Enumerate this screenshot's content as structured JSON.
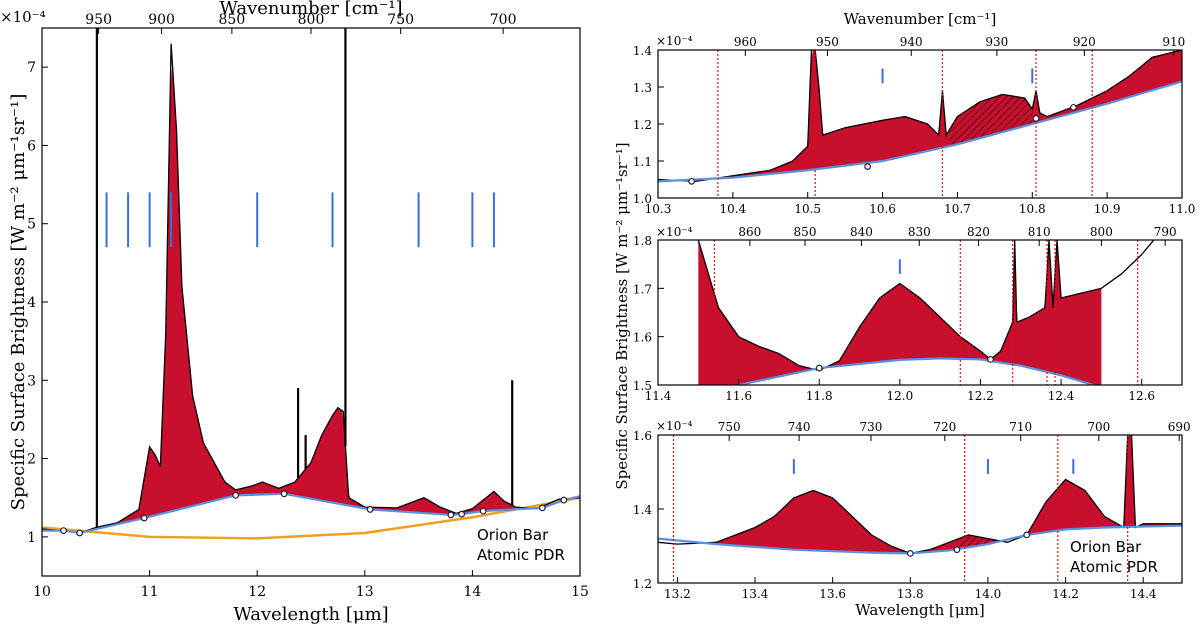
{
  "figure": {
    "shared_ylabel": "Specific Surface Brightness [W m⁻² μm⁻¹sr⁻¹]",
    "colors": {
      "feature_fill": "#c8102e",
      "continuum": "#5b8fe0",
      "global_continuum": "#f0a020",
      "spectrum": "#000000",
      "marker": "#3a6fd8",
      "vline": "#dd1111"
    }
  },
  "chart_data": [
    {
      "type": "line",
      "title": "",
      "xlabel": "Wavelength [μm]",
      "x2label": "Wavenumber [cm⁻¹]",
      "ylabel": "Specific Surface Brightness [W m⁻² μm⁻¹sr⁻¹]",
      "y_multiplier": "×10⁻⁴",
      "xlim": [
        10,
        15
      ],
      "ylim": [
        0.5,
        7.5
      ],
      "xticks": [
        10,
        11,
        12,
        13,
        14,
        15
      ],
      "yticks": [
        1,
        2,
        3,
        4,
        5,
        6,
        7
      ],
      "x2ticks": [
        950,
        900,
        850,
        800,
        750,
        700
      ],
      "annotation": [
        "Orion Bar",
        "Atomic PDR"
      ],
      "marker_lines": [
        10.6,
        10.8,
        11.0,
        11.2,
        12.0,
        12.7,
        13.5,
        14.0,
        14.2
      ],
      "marker_range": [
        4.7,
        5.4
      ],
      "continuum_anchors": [
        [
          10.2,
          1.08
        ],
        [
          10.35,
          1.05
        ],
        [
          10.95,
          1.24
        ],
        [
          11.8,
          1.53
        ],
        [
          12.25,
          1.55
        ],
        [
          13.05,
          1.35
        ],
        [
          13.8,
          1.28
        ],
        [
          13.9,
          1.29
        ],
        [
          14.1,
          1.33
        ],
        [
          14.65,
          1.37
        ],
        [
          14.85,
          1.47
        ]
      ],
      "global_continuum": [
        [
          10,
          1.12
        ],
        [
          11,
          1.0
        ],
        [
          12,
          0.98
        ],
        [
          13,
          1.05
        ],
        [
          14,
          1.25
        ],
        [
          15,
          1.5
        ]
      ],
      "series": [
        {
          "name": "spectrum",
          "x": [
            10.0,
            10.2,
            10.35,
            10.5,
            10.7,
            10.9,
            11.0,
            11.05,
            11.1,
            11.15,
            11.2,
            11.25,
            11.3,
            11.4,
            11.5,
            11.6,
            11.7,
            11.8,
            11.95,
            12.05,
            12.2,
            12.35,
            12.5,
            12.6,
            12.7,
            12.75,
            12.8,
            12.85,
            13.0,
            13.3,
            13.55,
            13.7,
            13.85,
            14.0,
            14.2,
            14.3,
            14.35,
            14.4,
            14.6,
            14.8,
            15.0
          ],
          "y": [
            1.1,
            1.08,
            1.05,
            1.12,
            1.18,
            1.35,
            2.15,
            2.05,
            1.9,
            3.6,
            7.3,
            6.2,
            4.2,
            2.8,
            2.2,
            1.95,
            1.7,
            1.6,
            1.65,
            1.7,
            1.62,
            1.7,
            1.95,
            2.3,
            2.55,
            2.65,
            2.6,
            1.5,
            1.38,
            1.37,
            1.5,
            1.38,
            1.3,
            1.36,
            1.58,
            1.45,
            1.42,
            1.38,
            1.36,
            1.48,
            1.5
          ]
        },
        {
          "name": "spikes",
          "x": [
            10.51,
            12.82,
            12.38,
            12.45,
            14.37
          ],
          "y": [
            7.5,
            7.5,
            2.9,
            2.3,
            3.0
          ]
        }
      ]
    },
    {
      "type": "line",
      "xlabel": "",
      "x2label": "Wavenumber [cm⁻¹]",
      "y_multiplier": "×10⁻⁴",
      "xlim": [
        10.3,
        11.0
      ],
      "ylim": [
        1.0,
        1.4
      ],
      "xticks": [
        10.3,
        10.4,
        10.5,
        10.6,
        10.7,
        10.8,
        10.9,
        11.0
      ],
      "yticks": [
        1.0,
        1.1,
        1.2,
        1.3,
        1.4
      ],
      "x2ticks": [
        960,
        950,
        940,
        930,
        920,
        910
      ],
      "vlines": [
        10.38,
        10.51,
        10.68,
        10.805,
        10.88
      ],
      "marker_lines": [
        10.6,
        10.8
      ],
      "marker_range": [
        1.31,
        1.35
      ],
      "continuum_anchors": [
        [
          10.345,
          1.045
        ],
        [
          10.58,
          1.085
        ],
        [
          10.805,
          1.215
        ],
        [
          10.855,
          1.245
        ]
      ],
      "series": [
        {
          "name": "spectrum",
          "x": [
            10.3,
            10.35,
            10.4,
            10.45,
            10.48,
            10.5,
            10.505,
            10.51,
            10.515,
            10.52,
            10.55,
            10.6,
            10.63,
            10.66,
            10.675,
            10.68,
            10.685,
            10.7,
            10.73,
            10.76,
            10.79,
            10.8,
            10.805,
            10.81,
            10.82,
            10.86,
            10.9,
            10.93,
            10.96,
            11.0
          ],
          "y": [
            1.05,
            1.045,
            1.06,
            1.075,
            1.1,
            1.14,
            1.4,
            1.4,
            1.3,
            1.17,
            1.19,
            1.21,
            1.22,
            1.2,
            1.17,
            1.29,
            1.17,
            1.22,
            1.26,
            1.28,
            1.27,
            1.24,
            1.29,
            1.23,
            1.22,
            1.25,
            1.29,
            1.33,
            1.38,
            1.4
          ]
        },
        {
          "name": "continuum",
          "x": [
            10.3,
            10.4,
            10.5,
            10.6,
            10.7,
            10.8,
            10.9,
            11.0
          ],
          "y": [
            1.045,
            1.055,
            1.075,
            1.1,
            1.145,
            1.2,
            1.255,
            1.315
          ]
        }
      ]
    },
    {
      "type": "line",
      "xlabel": "",
      "x2label": "",
      "y_multiplier": "×10⁻⁴",
      "xlim": [
        11.4,
        12.7
      ],
      "ylim": [
        1.5,
        1.8
      ],
      "xticks": [
        11.4,
        11.6,
        11.8,
        12.0,
        12.2,
        12.4,
        12.6
      ],
      "yticks": [
        1.5,
        1.6,
        1.7,
        1.8
      ],
      "x2ticks": [
        860,
        850,
        840,
        830,
        820,
        810,
        800,
        790
      ],
      "vlines": [
        11.54,
        12.15,
        12.28,
        12.365,
        12.385,
        12.59
      ],
      "marker_lines": [
        12.0
      ],
      "marker_range": [
        1.73,
        1.76
      ],
      "continuum_anchors": [
        [
          11.8,
          1.535
        ],
        [
          12.225,
          1.553
        ]
      ],
      "series": [
        {
          "name": "spectrum",
          "x": [
            11.5,
            11.55,
            11.6,
            11.65,
            11.7,
            11.75,
            11.8,
            11.85,
            11.9,
            11.95,
            12.0,
            12.05,
            12.1,
            12.15,
            12.2,
            12.225,
            12.25,
            12.28,
            12.285,
            12.29,
            12.32,
            12.36,
            12.37,
            12.38,
            12.39,
            12.4,
            12.45,
            12.5,
            12.55,
            12.6,
            12.63
          ],
          "y": [
            1.8,
            1.66,
            1.6,
            1.58,
            1.565,
            1.54,
            1.53,
            1.55,
            1.62,
            1.68,
            1.71,
            1.68,
            1.64,
            1.6,
            1.57,
            1.553,
            1.57,
            1.63,
            1.8,
            1.63,
            1.64,
            1.66,
            1.8,
            1.66,
            1.8,
            1.68,
            1.69,
            1.7,
            1.73,
            1.77,
            1.8
          ]
        },
        {
          "name": "continuum",
          "x": [
            11.4,
            11.6,
            11.8,
            12.0,
            12.1,
            12.2,
            12.3,
            12.4,
            12.5
          ],
          "y": [
            1.44,
            1.5,
            1.535,
            1.552,
            1.555,
            1.553,
            1.54,
            1.52,
            1.495
          ]
        }
      ]
    },
    {
      "type": "line",
      "xlabel": "Wavelength [μm]",
      "x2label": "",
      "y_multiplier": "×10⁻⁴",
      "xlim": [
        13.15,
        14.5
      ],
      "ylim": [
        1.2,
        1.6
      ],
      "xticks": [
        13.2,
        13.4,
        13.6,
        13.8,
        14.0,
        14.2,
        14.4
      ],
      "yticks": [
        1.2,
        1.4,
        1.6
      ],
      "x2ticks": [
        750,
        740,
        730,
        720,
        710,
        700,
        690
      ],
      "vlines": [
        13.19,
        13.94,
        14.18,
        14.36
      ],
      "marker_lines": [
        13.5,
        14.0,
        14.22
      ],
      "marker_range": [
        1.495,
        1.535
      ],
      "continuum_anchors": [
        [
          13.8,
          1.28
        ],
        [
          13.92,
          1.29
        ],
        [
          14.1,
          1.33
        ]
      ],
      "annotation": [
        "Orion Bar",
        "Atomic PDR"
      ],
      "series": [
        {
          "name": "spectrum",
          "x": [
            13.15,
            13.2,
            13.3,
            13.4,
            13.45,
            13.5,
            13.55,
            13.6,
            13.65,
            13.7,
            13.75,
            13.8,
            13.85,
            13.9,
            13.95,
            14.0,
            14.05,
            14.1,
            14.15,
            14.2,
            14.25,
            14.3,
            14.35,
            14.36,
            14.37,
            14.38,
            14.4,
            14.5
          ],
          "y": [
            1.31,
            1.305,
            1.31,
            1.35,
            1.38,
            1.43,
            1.45,
            1.43,
            1.38,
            1.33,
            1.3,
            1.28,
            1.29,
            1.31,
            1.33,
            1.32,
            1.31,
            1.33,
            1.42,
            1.48,
            1.45,
            1.38,
            1.35,
            1.6,
            1.6,
            1.35,
            1.36,
            1.36
          ]
        },
        {
          "name": "continuum",
          "x": [
            13.15,
            13.3,
            13.5,
            13.7,
            13.8,
            13.9,
            14.0,
            14.1,
            14.2,
            14.3,
            14.5
          ],
          "y": [
            1.32,
            1.305,
            1.29,
            1.282,
            1.28,
            1.288,
            1.305,
            1.33,
            1.345,
            1.35,
            1.355
          ]
        }
      ]
    }
  ]
}
